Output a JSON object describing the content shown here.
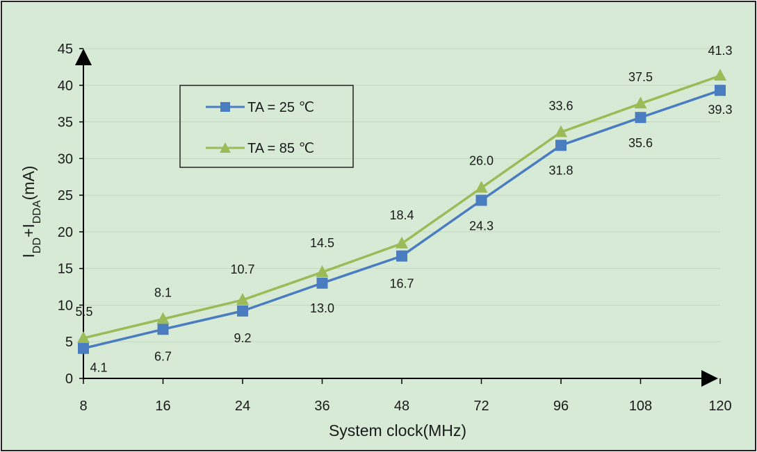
{
  "chart_data": {
    "type": "line",
    "categories": [
      "8",
      "16",
      "24",
      "36",
      "48",
      "72",
      "96",
      "108",
      "120"
    ],
    "series": [
      {
        "name": "TA = 25 ℃",
        "values": [
          4.1,
          6.7,
          9.2,
          13.0,
          16.7,
          24.3,
          31.8,
          35.6,
          39.3
        ],
        "labels": [
          "4.1",
          "6.7",
          "9.2",
          "13.0",
          "16.7",
          "24.3",
          "31.8",
          "35.6",
          "39.3"
        ],
        "color": "#4a7dc0",
        "marker": "square"
      },
      {
        "name": "TA = 85 ℃",
        "values": [
          5.5,
          8.1,
          10.7,
          14.5,
          18.4,
          26.0,
          33.6,
          37.5,
          41.3
        ],
        "labels": [
          "5.5",
          "8.1",
          "10.7",
          "14.5",
          "18.4",
          "26.0",
          "33.6",
          "37.5",
          "41.3"
        ],
        "color": "#9bbb59",
        "marker": "triangle"
      }
    ],
    "ylim": [
      0,
      45
    ],
    "yticks": [
      "0",
      "5",
      "10",
      "15",
      "20",
      "25",
      "30",
      "35",
      "40",
      "45"
    ],
    "xlabel": "System clock(MHz)",
    "ylabel": {
      "base": "I",
      "sub1": "DD",
      "plus": "+I",
      "sub2": "DDA",
      "unit": "(mA)"
    },
    "grid": true,
    "legend_position": "top-left",
    "background_color": "#d6ead6"
  }
}
